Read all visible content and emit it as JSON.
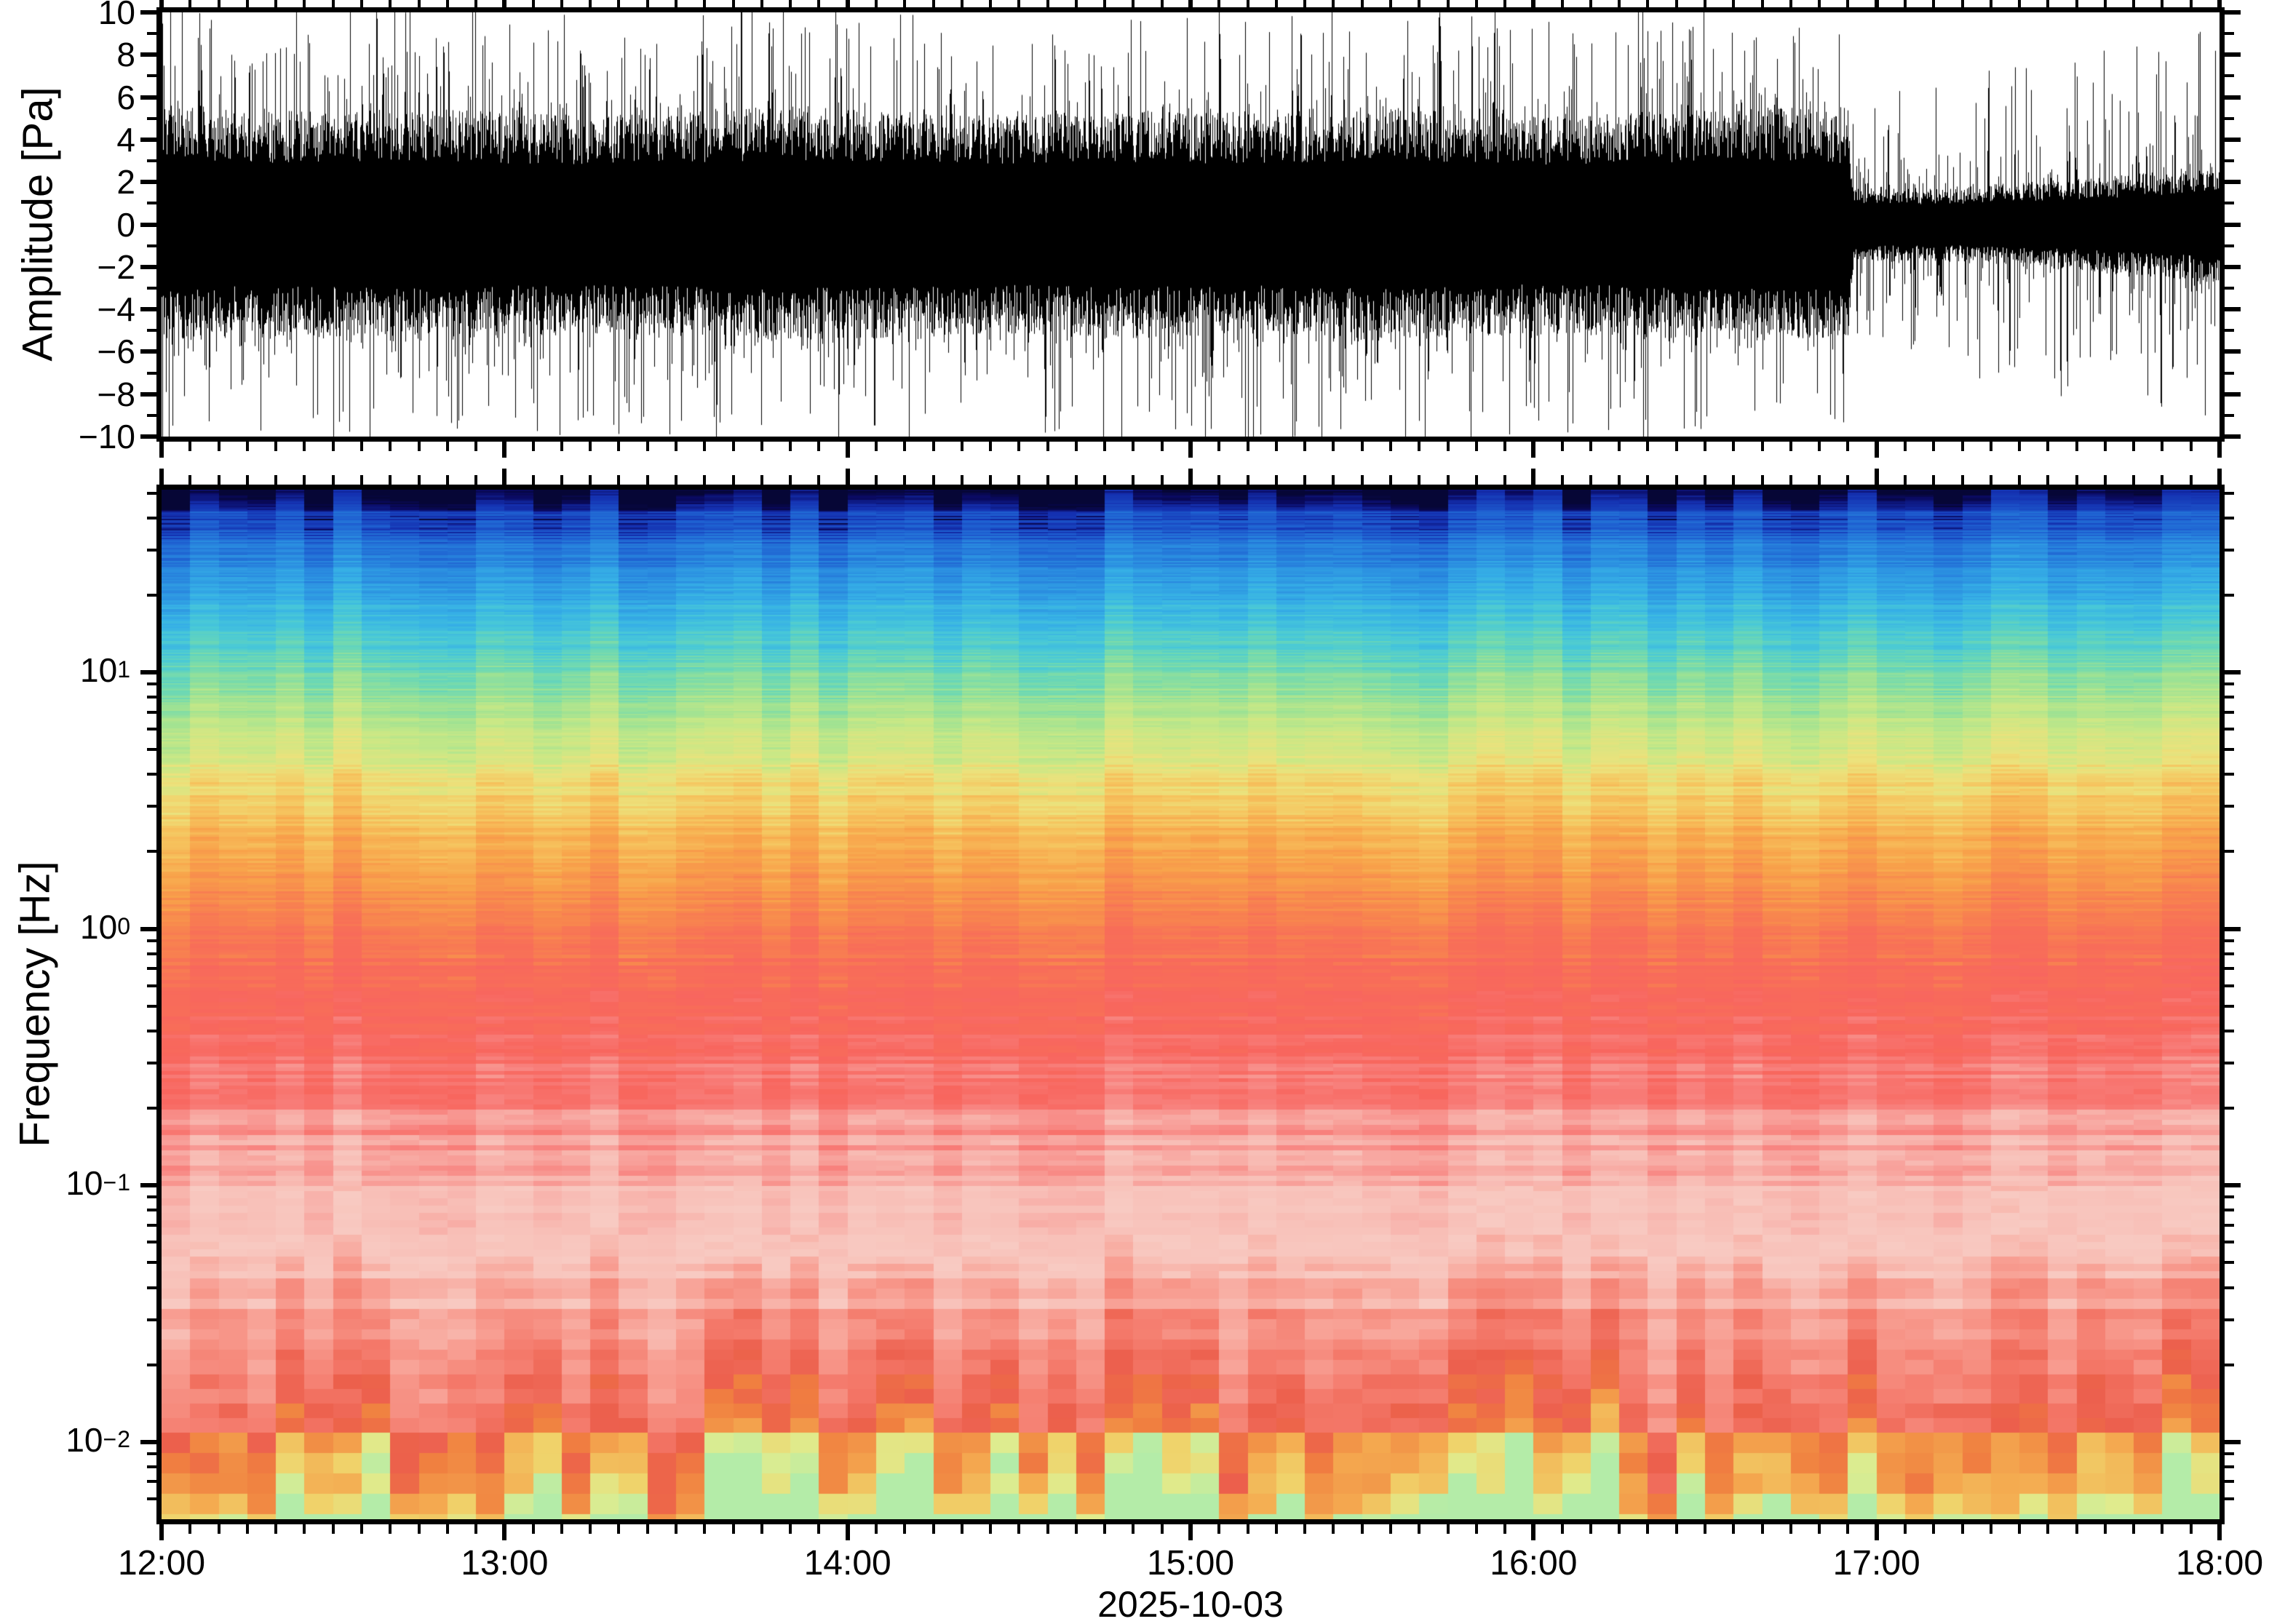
{
  "figure": {
    "background_color": "#ffffff",
    "frame_color": "#000000"
  },
  "time_axis": {
    "xlabel": "2025-10-03",
    "start_minute": 0,
    "end_minute": 360,
    "major_step_minutes": 60,
    "minor_step_minutes": 5,
    "major_tick_labels": [
      "12:00",
      "13:00",
      "14:00",
      "15:00",
      "16:00",
      "17:00",
      "18:00"
    ]
  },
  "waveform_panel": {
    "ylabel": "Amplitude [Pa]",
    "ymin": -10,
    "ymax": 10,
    "y_major_ticks": [
      {
        "value": 10,
        "label": "10"
      },
      {
        "value": 8,
        "label": "8"
      },
      {
        "value": 6,
        "label": "6"
      },
      {
        "value": 4,
        "label": "4"
      },
      {
        "value": 2,
        "label": "2"
      },
      {
        "value": 0,
        "label": "0"
      },
      {
        "value": -2,
        "label": "−2"
      },
      {
        "value": -4,
        "label": "−4"
      },
      {
        "value": -6,
        "label": "−6"
      },
      {
        "value": -8,
        "label": "−8"
      },
      {
        "value": -10,
        "label": "−10"
      }
    ],
    "y_minor_step": 1,
    "trace_color": "#000000"
  },
  "spectrogram_panel": {
    "ylabel": "Frequency [Hz]",
    "yscale": "log",
    "freq_top": 51.5,
    "freq_bottom": 0.005,
    "y_decade_ticks": [
      {
        "value": 10,
        "base": "10",
        "exp": "1"
      },
      {
        "value": 1,
        "base": "10",
        "exp": "0"
      },
      {
        "value": 0.1,
        "base": "10",
        "exp": "−1"
      },
      {
        "value": 0.01,
        "base": "10",
        "exp": "−2"
      }
    ]
  },
  "chart_data": [
    {
      "type": "line",
      "title": "",
      "xlabel": "2025-10-03",
      "ylabel": "Amplitude [Pa]",
      "ylim": [
        -10,
        10
      ],
      "x_ticks": [
        "12:00",
        "13:00",
        "14:00",
        "15:00",
        "16:00",
        "17:00",
        "18:00"
      ],
      "description": "Broadband infrasound pressure waveform; high-amplitude tremor (core ±4 Pa, frequent spikes clipped at ±10 Pa) from 12:00 until about 16:56, then an abrupt drop to a quieter state (core ±1.5 Pa with sparse spikes to ±8 Pa) through 18:00.",
      "envelope": {
        "time_minutes": [
          0,
          15,
          30,
          45,
          60,
          75,
          90,
          105,
          120,
          135,
          150,
          165,
          180,
          195,
          210,
          225,
          240,
          255,
          270,
          285,
          295,
          296,
          310,
          325,
          340,
          360
        ],
        "core_amplitude_pa": [
          4.3,
          4.0,
          4.1,
          4.2,
          4.0,
          3.9,
          4.0,
          4.2,
          4.1,
          4.0,
          3.9,
          4.1,
          4.0,
          4.0,
          4.2,
          4.1,
          3.9,
          4.0,
          4.1,
          4.2,
          4.0,
          1.4,
          1.3,
          1.5,
          1.7,
          2.1
        ],
        "peak_amplitude_pa": [
          10.5,
          9.6,
          9.9,
          10.2,
          9.3,
          9.1,
          9.7,
          10.3,
          9.5,
          9.2,
          9.4,
          9.7,
          10.0,
          9.4,
          10.4,
          9.6,
          9.1,
          9.4,
          9.7,
          9.0,
          8.8,
          5.5,
          6.5,
          7.2,
          7.6,
          8.4
        ],
        "transition_minute": 296
      }
    },
    {
      "type": "heatmap",
      "title": "",
      "xlabel": "2025-10-03",
      "ylabel": "Frequency [Hz]",
      "yscale": "log",
      "ylim": [
        0.005,
        51.5
      ],
      "x_ticks": [
        "12:00",
        "13:00",
        "14:00",
        "15:00",
        "16:00",
        "17:00",
        "18:00"
      ],
      "time_bin_minutes": 5,
      "description": "Spectrogram of the waveform, 12:00-18:00, log frequency 0.005-50 Hz. Power is lowest at high frequency (dark blue near 50 Hz) and increases toward low frequency: cyan/green 8-30 Hz, yellow-orange 2-8 Hz, red 0.2-2 Hz, pale pink (highest power) 0.05-0.15 Hz, a darker red band near 0.02 Hz, then orange-yellow-green at the lowest frequencies with strong 5-minute column-to-column variability including occasional red and teal streaks.",
      "color_profile": [
        {
          "frac_from_top": 0.0,
          "freq_hz": 51.5,
          "color": "#060636"
        },
        {
          "frac_from_top": 0.006,
          "freq_hz": 48.7,
          "color": "#0a0a64"
        },
        {
          "frac_from_top": 0.015,
          "freq_hz": 44.8,
          "color": "#1430b0"
        },
        {
          "frac_from_top": 0.035,
          "freq_hz": 37.3,
          "color": "#1e5ed0"
        },
        {
          "frac_from_top": 0.07,
          "freq_hz": 27.2,
          "color": "#2a8ce0"
        },
        {
          "frac_from_top": 0.105,
          "freq_hz": 19.6,
          "color": "#36b0e6"
        },
        {
          "frac_from_top": 0.135,
          "freq_hz": 14.9,
          "color": "#48c8d8"
        },
        {
          "frac_from_top": 0.165,
          "freq_hz": 11.3,
          "color": "#6cd8b4"
        },
        {
          "frac_from_top": 0.195,
          "freq_hz": 8.6,
          "color": "#9ce294"
        },
        {
          "frac_from_top": 0.23,
          "freq_hz": 6.2,
          "color": "#c8e886"
        },
        {
          "frac_from_top": 0.27,
          "freq_hz": 4.3,
          "color": "#ece27c"
        },
        {
          "frac_from_top": 0.31,
          "freq_hz": 2.9,
          "color": "#f6c45e"
        },
        {
          "frac_from_top": 0.355,
          "freq_hz": 1.9,
          "color": "#f8a24a"
        },
        {
          "frac_from_top": 0.4,
          "freq_hz": 1.3,
          "color": "#f8864e"
        },
        {
          "frac_from_top": 0.45,
          "freq_hz": 0.81,
          "color": "#f86e58"
        },
        {
          "frac_from_top": 0.52,
          "freq_hz": 0.42,
          "color": "#f8665e"
        },
        {
          "frac_from_top": 0.575,
          "freq_hz": 0.25,
          "color": "#f87e7a"
        },
        {
          "frac_from_top": 0.625,
          "freq_hz": 0.16,
          "color": "#f89e98"
        },
        {
          "frac_from_top": 0.675,
          "freq_hz": 0.1,
          "color": "#f8beb6"
        },
        {
          "frac_from_top": 0.725,
          "freq_hz": 0.063,
          "color": "#f8cac2"
        },
        {
          "frac_from_top": 0.78,
          "freq_hz": 0.038,
          "color": "#f8a094"
        },
        {
          "frac_from_top": 0.83,
          "freq_hz": 0.024,
          "color": "#f4796a"
        },
        {
          "frac_from_top": 0.868,
          "freq_hz": 0.017,
          "color": "#ec5f4c"
        },
        {
          "frac_from_top": 0.9,
          "freq_hz": 0.0125,
          "color": "#f08040"
        },
        {
          "frac_from_top": 0.935,
          "freq_hz": 0.009,
          "color": "#f4aa50"
        },
        {
          "frac_from_top": 0.963,
          "freq_hz": 0.007,
          "color": "#f0d26a"
        },
        {
          "frac_from_top": 0.984,
          "freq_hz": 0.0058,
          "color": "#dfec8e"
        },
        {
          "frac_from_top": 1.0,
          "freq_hz": 0.005,
          "color": "#b4eca8"
        }
      ]
    }
  ]
}
